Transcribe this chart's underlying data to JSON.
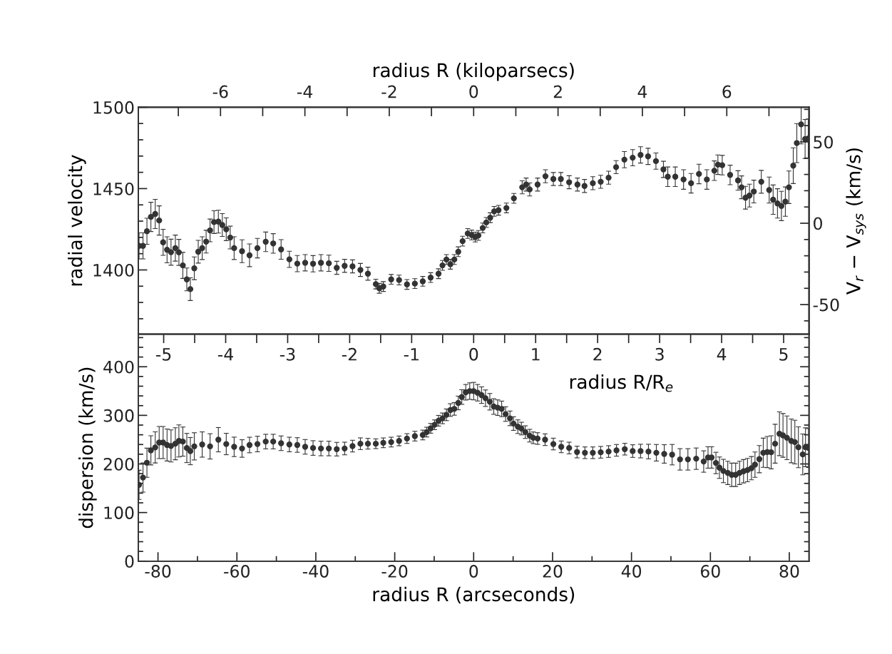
{
  "chart_data": [
    {
      "type": "scatter",
      "x2label": "radius R (kiloparsecs)",
      "ylabel": "radial velocity",
      "y2label": "V$_{r}$ − V$_{sys}$ (km/s)",
      "marker": "circle",
      "tick_labels": "y",
      "xlim": [
        -85,
        85
      ],
      "ylim": [
        1360.5,
        1500
      ],
      "yticks": [
        {
          "value": 1370,
          "label": null
        },
        {
          "value": 1380,
          "label": null
        },
        {
          "value": 1390,
          "label": null
        },
        1400,
        {
          "value": 1410,
          "label": null
        },
        {
          "value": 1420,
          "label": null
        },
        {
          "value": 1430,
          "label": null
        },
        {
          "value": 1440,
          "label": null
        },
        1450,
        {
          "value": 1460,
          "label": null
        },
        {
          "value": 1470,
          "label": null
        },
        {
          "value": 1480,
          "label": null
        },
        {
          "value": 1490,
          "label": null
        },
        1500
      ],
      "y2lim": [
        -68.2,
        71.3
      ],
      "y2ticks": [
        {
          "value": -60,
          "label": null
        },
        -50,
        {
          "value": -40,
          "label": null
        },
        {
          "value": -30,
          "label": null
        },
        {
          "value": -20,
          "label": null
        },
        {
          "value": -10,
          "label": null
        },
        0,
        {
          "value": 10,
          "label": null
        },
        {
          "value": 20,
          "label": null
        },
        {
          "value": 30,
          "label": null
        },
        {
          "value": 40,
          "label": null
        },
        50,
        {
          "value": 60,
          "label": null
        },
        {
          "value": 70,
          "label": null
        }
      ],
      "x2lim": [
        -7.95,
        7.95
      ],
      "x2ticks": [
        {
          "value": -7,
          "label": null
        },
        -6,
        {
          "value": -5,
          "label": null
        },
        -4,
        {
          "value": -3,
          "label": null
        },
        -2,
        {
          "value": -1,
          "label": null
        },
        0,
        {
          "value": 1,
          "label": null
        },
        2,
        {
          "value": 3,
          "label": null
        },
        4,
        {
          "value": 5,
          "label": null
        },
        6,
        {
          "value": 7,
          "label": null
        }
      ],
      "series": [
        {
          "color": "#333333",
          "x": [
            -84.8,
            -83.8,
            -82.8,
            -81.8,
            -80.7,
            -79.7,
            -78.7,
            -77.7,
            -76.7,
            -75.6,
            -74.7,
            -73.7,
            -72.7,
            -71.8,
            -70.8,
            -69.8,
            -68.8,
            -67.8,
            -66.8,
            -65.8,
            -64.7,
            -63.7,
            -62.7,
            -61.7,
            -60.7,
            -58.7,
            -56.8,
            -54.8,
            -52.7,
            -50.8,
            -48.8,
            -46.7,
            -44.7,
            -42.7,
            -40.7,
            -38.7,
            -36.7,
            -34.7,
            -32.7,
            -30.7,
            -28.7,
            -26.8,
            -24.8,
            -23.9,
            -22.9,
            -20.9,
            -18.9,
            -16.9,
            -14.9,
            -12.9,
            -10.9,
            -8.9,
            -7.9,
            -6.9,
            -5.9,
            -4.9,
            -3.9,
            -2.8,
            -1.5,
            -0.5,
            0.4,
            1.2,
            2.3,
            3.2,
            4.2,
            5.2,
            6.3,
            8.3,
            10.2,
            12.3,
            13.3,
            14.2,
            16.2,
            18.2,
            20.2,
            22.1,
            24.2,
            26.3,
            28.1,
            30.2,
            32.2,
            34.2,
            36.1,
            38.2,
            40.3,
            42.3,
            44.2,
            46.2,
            48.1,
            49.2,
            51.1,
            53.2,
            55.1,
            57.1,
            59.1,
            61.0,
            61.9,
            63.0,
            65.0,
            67.0,
            67.9,
            68.9,
            69.9,
            71.0,
            72.9,
            74.9,
            75.9,
            77.0,
            78.0,
            79.0,
            79.9,
            81.0,
            81.9,
            83.0,
            84.0,
            84.8
          ],
          "values": [
            1414.8,
            1414.8,
            1423.8,
            1432.6,
            1434.4,
            1430.4,
            1417,
            1412.4,
            1410.9,
            1413.4,
            1410.8,
            1402.8,
            1394.2,
            1388.2,
            1401,
            1411.2,
            1413.4,
            1417.4,
            1424.3,
            1429.4,
            1429.7,
            1427.6,
            1425,
            1419.9,
            1413.4,
            1411.5,
            1409,
            1413.4,
            1417.3,
            1416.3,
            1412.6,
            1406.5,
            1403.9,
            1404.4,
            1403.8,
            1404.4,
            1404.1,
            1401.3,
            1402.5,
            1402.2,
            1400,
            1397.7,
            1391.3,
            1388.7,
            1389.8,
            1394.2,
            1393.8,
            1391.1,
            1391.6,
            1393,
            1395.3,
            1397.7,
            1402.8,
            1406.4,
            1403.5,
            1406.4,
            1411.2,
            1417.7,
            1422.4,
            1421.5,
            1420.2,
            1421.2,
            1425.8,
            1429.2,
            1432.1,
            1436,
            1436.7,
            1438.1,
            1444,
            1450.8,
            1452.5,
            1449.5,
            1452.5,
            1457.6,
            1455.9,
            1455.9,
            1453.9,
            1452.5,
            1451.6,
            1453.3,
            1454.2,
            1456.7,
            1463.2,
            1467.8,
            1469,
            1470.7,
            1469.8,
            1466.9,
            1461.8,
            1457.3,
            1457.3,
            1455.6,
            1453.3,
            1459,
            1455.6,
            1461,
            1464.7,
            1464.4,
            1458.4,
            1455,
            1450.8,
            1444.4,
            1445.7,
            1448.2,
            1454.2,
            1449.1,
            1443.2,
            1440.9,
            1439.3,
            1442,
            1450.8,
            1464.1,
            1478,
            1489.5,
            1480.5,
            1480.8
          ],
          "errors": [
            8,
            8,
            8,
            9,
            9,
            9,
            8,
            8,
            8,
            8,
            8,
            8,
            7,
            7,
            7,
            7,
            7,
            7,
            7,
            7,
            7,
            7,
            7,
            7,
            7,
            7,
            7,
            6,
            6,
            6,
            6,
            5,
            5,
            5,
            5,
            5,
            5,
            4,
            4,
            4,
            4,
            4,
            3,
            3,
            3,
            3,
            3,
            3,
            3,
            3,
            3,
            3,
            3,
            3,
            3,
            3,
            3,
            3,
            3,
            3,
            3,
            3,
            3,
            3,
            3,
            3,
            3,
            3,
            3,
            4,
            4,
            4,
            4,
            4,
            4,
            4,
            4,
            4,
            4,
            4,
            4,
            4,
            4,
            5,
            5,
            5,
            5,
            5,
            5,
            6,
            6,
            6,
            6,
            6,
            6,
            6,
            6,
            6,
            6,
            6,
            7,
            7,
            7,
            7,
            7,
            8,
            9,
            9,
            9,
            9,
            10,
            11,
            12,
            12,
            12,
            12
          ]
        }
      ]
    },
    {
      "type": "scatter",
      "xlabel": "radius R (arcseconds)",
      "ylabel": "dispersion (km/s)",
      "x2label": "radius R/R$_{e}$",
      "marker": "circle",
      "xlim": [
        -85,
        85
      ],
      "xticks": [
        -80,
        {
          "value": -70,
          "label": null
        },
        -60,
        {
          "value": -50,
          "label": null
        },
        -40,
        {
          "value": -30,
          "label": null
        },
        -20,
        {
          "value": -10,
          "label": null
        },
        0,
        {
          "value": 10,
          "label": null
        },
        20,
        {
          "value": 30,
          "label": null
        },
        40,
        {
          "value": 50,
          "label": null
        },
        60,
        {
          "value": 70,
          "label": null
        },
        80
      ],
      "ylim": [
        0,
        467
      ],
      "yticks": [
        0,
        {
          "value": 20,
          "label": null
        },
        {
          "value": 40,
          "label": null
        },
        {
          "value": 60,
          "label": null
        },
        {
          "value": 80,
          "label": null
        },
        100,
        {
          "value": 120,
          "label": null
        },
        {
          "value": 140,
          "label": null
        },
        {
          "value": 160,
          "label": null
        },
        {
          "value": 180,
          "label": null
        },
        200,
        {
          "value": 220,
          "label": null
        },
        {
          "value": 240,
          "label": null
        },
        {
          "value": 260,
          "label": null
        },
        {
          "value": 280,
          "label": null
        },
        300,
        {
          "value": 320,
          "label": null
        },
        {
          "value": 340,
          "label": null
        },
        {
          "value": 360,
          "label": null
        },
        {
          "value": 380,
          "label": null
        },
        400,
        {
          "value": 420,
          "label": null
        },
        {
          "value": 440,
          "label": null
        },
        {
          "value": 460,
          "label": null
        }
      ],
      "x2lim": [
        -5.41,
        5.41
      ],
      "x2ticks": [
        -5,
        {
          "value": -4.5,
          "label": null
        },
        -4,
        {
          "value": -3.5,
          "label": null
        },
        -3,
        {
          "value": -2.5,
          "label": null
        },
        -2,
        {
          "value": -1.5,
          "label": null
        },
        -1,
        {
          "value": -0.5,
          "label": null
        },
        0,
        {
          "value": 0.5,
          "label": null
        },
        1,
        {
          "value": 1.5,
          "label": null
        },
        2,
        {
          "value": 2.5,
          "label": null
        },
        3,
        {
          "value": 3.5,
          "label": null
        },
        4,
        {
          "value": 4.5,
          "label": null
        },
        5
      ],
      "series": [
        {
          "color": "#333333",
          "x": [
            -84.8,
            -83.8,
            -82.8,
            -81.8,
            -80.7,
            -79.7,
            -78.7,
            -77.7,
            -76.7,
            -75.6,
            -74.7,
            -73.7,
            -72.7,
            -71.8,
            -70.8,
            -68.8,
            -66.8,
            -64.7,
            -62.7,
            -60.7,
            -58.7,
            -56.8,
            -54.8,
            -52.7,
            -50.8,
            -48.8,
            -46.7,
            -44.7,
            -42.7,
            -40.7,
            -38.7,
            -36.7,
            -34.7,
            -32.7,
            -30.7,
            -28.7,
            -26.8,
            -24.8,
            -22.9,
            -20.9,
            -18.9,
            -16.9,
            -14.9,
            -12.9,
            -11.9,
            -10.9,
            -9.9,
            -8.9,
            -7.9,
            -6.9,
            -5.9,
            -4.9,
            -3.9,
            -3.0,
            -2.0,
            -1.0,
            0,
            1.0,
            2.0,
            3.0,
            4.1,
            5.1,
            6.1,
            7.1,
            8.1,
            9.2,
            10.1,
            11.2,
            12.1,
            13.1,
            14.2,
            15.1,
            16.2,
            18.1,
            20.2,
            22.2,
            24.2,
            26.2,
            28.2,
            30.2,
            32.2,
            34.2,
            36.2,
            38.3,
            40.3,
            42.3,
            44.3,
            46.3,
            48.3,
            50.3,
            52.3,
            54.3,
            56.4,
            58.3,
            59.4,
            60.3,
            61.4,
            62.3,
            63.3,
            64.4,
            65.4,
            66.4,
            67.4,
            68.4,
            69.4,
            70.4,
            71.3,
            72.4,
            73.4,
            74.4,
            75.4,
            76.4,
            77.5,
            78.4,
            79.4,
            80.5,
            81.4,
            82.3,
            83.4,
            84.1,
            84.9
          ],
          "values": [
            157,
            172,
            202.5,
            228,
            234,
            244,
            244,
            239,
            237,
            241.6,
            247.4,
            246,
            232.8,
            226.4,
            236.2,
            240,
            236.2,
            249.9,
            241,
            235.2,
            231.8,
            239,
            241,
            246,
            246,
            242.6,
            240,
            239,
            235.2,
            232.8,
            231.8,
            231.8,
            230.4,
            231.8,
            236.7,
            241.6,
            241.6,
            241.6,
            243.5,
            245,
            247.4,
            252.3,
            257.2,
            259.6,
            265.5,
            273.3,
            280.6,
            288.9,
            293.8,
            301.1,
            310.9,
            313.3,
            325.5,
            337.7,
            347.5,
            349.9,
            349.9,
            346.5,
            341.6,
            335.3,
            328,
            318.2,
            315.8,
            313.3,
            302.6,
            293.8,
            283.1,
            276.7,
            272.8,
            265.5,
            258.2,
            253.8,
            252.3,
            249.9,
            241,
            235.2,
            232.8,
            224.5,
            223,
            223,
            224,
            225.5,
            228,
            230.4,
            226.5,
            226.5,
            225.5,
            223,
            220.6,
            219.1,
            209.4,
            209.4,
            210.8,
            205,
            213.3,
            213.3,
            202,
            192.3,
            185.5,
            181.6,
            177.6,
            177.6,
            181.6,
            185,
            187.4,
            191.3,
            198.6,
            209.9,
            223,
            224.5,
            224,
            241.6,
            262.1,
            258.7,
            253.8,
            247.4,
            245,
            234.3,
            219.6,
            234.3,
            232.8
          ],
          "errors": [
            30,
            30,
            30,
            30,
            32,
            33,
            33,
            33,
            33,
            33,
            33,
            30,
            30,
            28,
            28,
            26,
            26,
            25,
            22,
            20,
            18,
            16,
            16,
            15,
            15,
            15,
            15,
            15,
            15,
            15,
            15,
            15,
            14,
            13,
            12,
            12,
            11,
            10,
            10,
            10,
            10,
            10,
            10,
            10,
            10,
            10,
            10,
            11,
            11,
            12,
            13,
            13,
            14,
            15,
            16,
            17,
            18,
            17,
            17,
            17,
            17,
            16,
            16,
            16,
            15,
            15,
            14,
            14,
            13,
            13,
            13,
            12,
            12,
            12,
            12,
            12,
            12,
            12,
            12,
            12,
            12,
            12,
            12,
            12,
            13,
            14,
            15,
            17,
            19,
            21,
            22,
            22,
            22,
            22,
            22,
            22,
            22,
            22,
            24,
            24,
            24,
            24,
            24,
            24,
            24,
            24,
            26,
            28,
            30,
            32,
            34,
            40,
            45,
            45,
            45,
            45,
            45,
            42,
            42,
            40,
            40
          ]
        }
      ]
    }
  ]
}
